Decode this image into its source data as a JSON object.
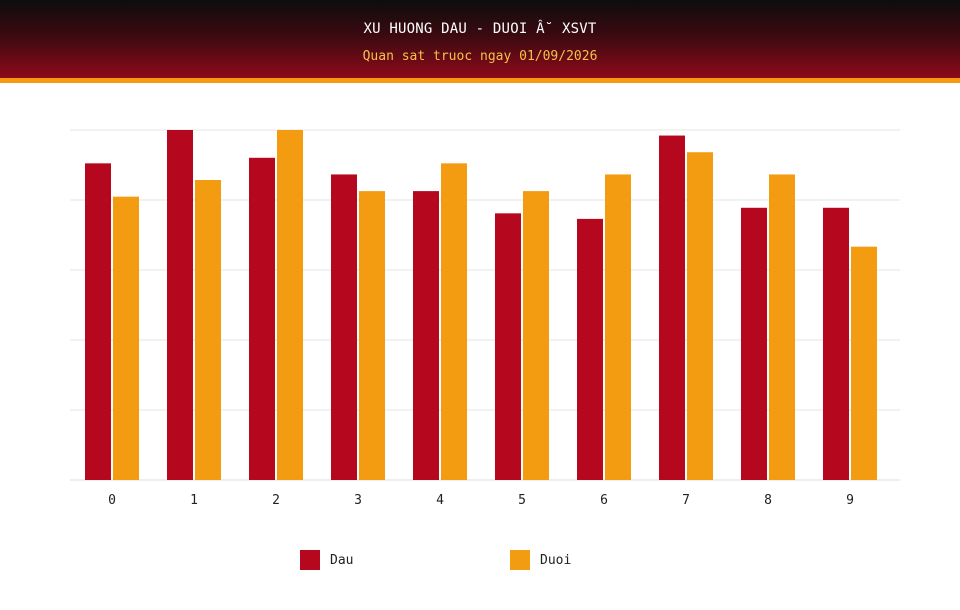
{
  "header": {
    "title": "XU HUONG DAU - DUOI Â˘ XSVT",
    "subtitle": "Quan sat truoc ngay 01/09/2026"
  },
  "colors": {
    "dau": "#b5081f",
    "duoi": "#f39c12"
  },
  "chart_data": {
    "type": "bar",
    "title": "XU HUONG DAU - DUOI Â˘ XSVT",
    "subtitle": "Quan sat truoc ngay 01/09/2026",
    "categories": [
      "0",
      "1",
      "2",
      "3",
      "4",
      "5",
      "6",
      "7",
      "8",
      "9"
    ],
    "series": [
      {
        "name": "Dau",
        "values": [
          57,
          63,
          58,
          55,
          52,
          48,
          47,
          62,
          49,
          49
        ]
      },
      {
        "name": "Duoi",
        "values": [
          51,
          54,
          63,
          52,
          57,
          52,
          55,
          59,
          55,
          42
        ]
      }
    ],
    "ylim": [
      0,
      63
    ],
    "grid": true,
    "legend": "bottom"
  },
  "legend": [
    {
      "label": "Dau"
    },
    {
      "label": "Duoi"
    }
  ]
}
